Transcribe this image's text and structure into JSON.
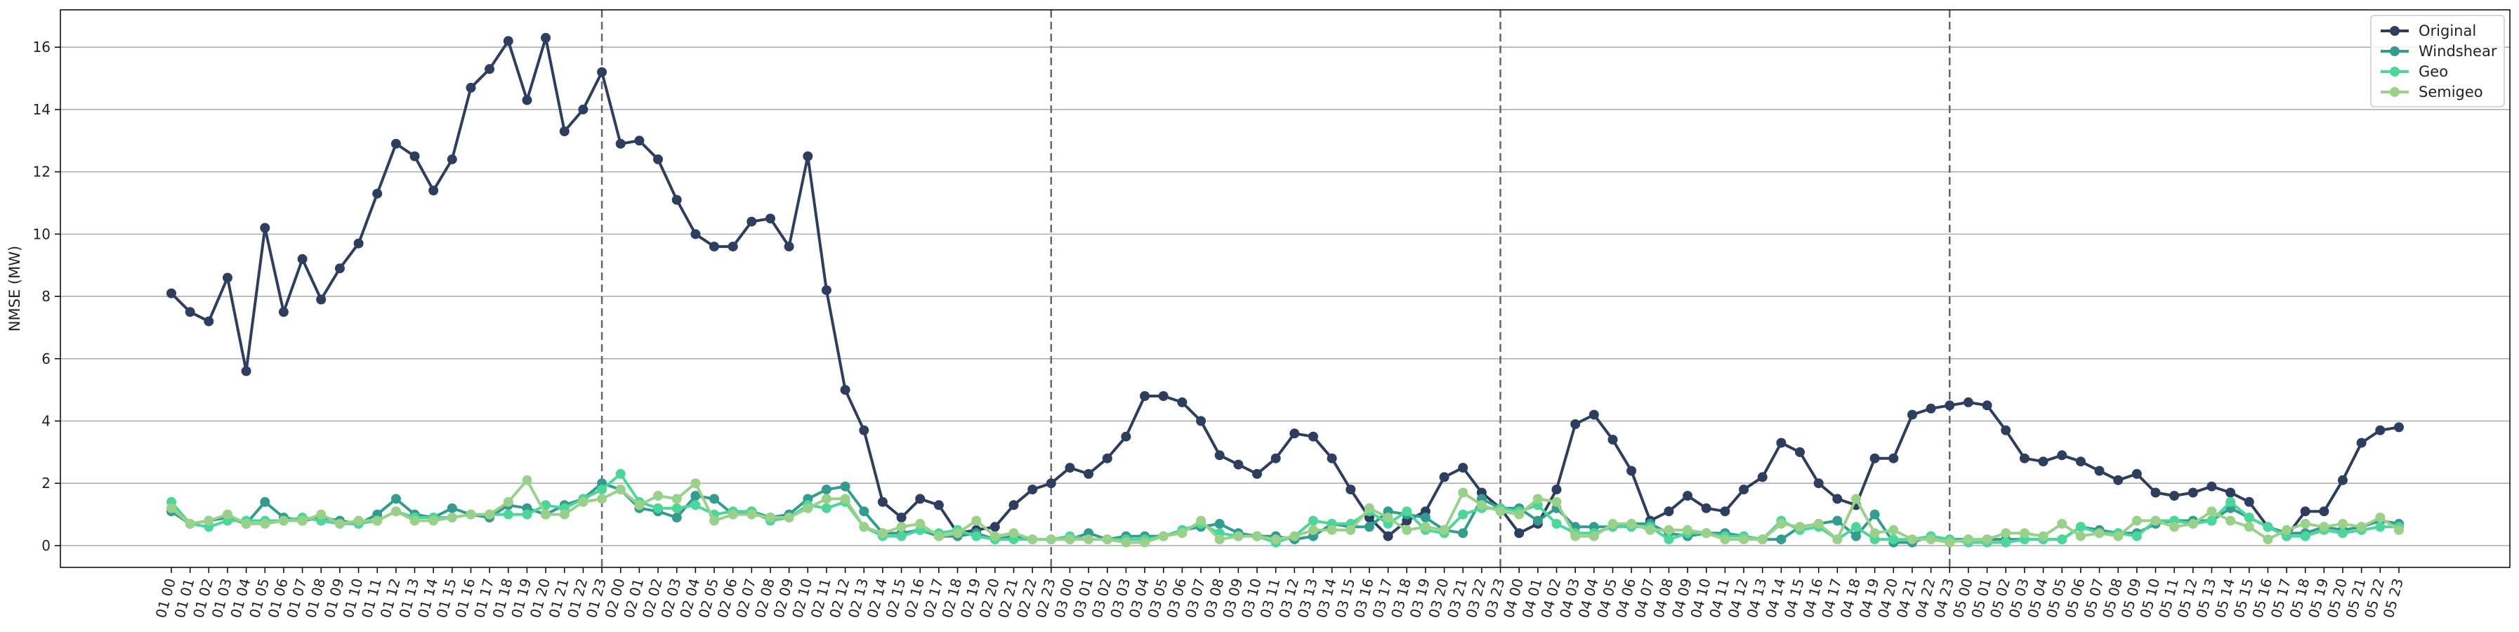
{
  "chart_data": {
    "type": "line",
    "title": "",
    "xlabel": "",
    "ylabel": "NMSE (MW)",
    "ylim": [
      -0.7,
      17.2
    ],
    "yticks": [
      0,
      2,
      4,
      6,
      8,
      10,
      12,
      14,
      16
    ],
    "grid": "horizontal",
    "legend_position": "top-right",
    "vlines": [
      "01 23",
      "02 23",
      "03 23",
      "04 23"
    ],
    "x": [
      "01 00",
      "01 01",
      "01 02",
      "01 03",
      "01 04",
      "01 05",
      "01 06",
      "01 07",
      "01 08",
      "01 09",
      "01 10",
      "01 11",
      "01 12",
      "01 13",
      "01 14",
      "01 15",
      "01 16",
      "01 17",
      "01 18",
      "01 19",
      "01 20",
      "01 21",
      "01 22",
      "01 23",
      "02 00",
      "02 01",
      "02 02",
      "02 03",
      "02 04",
      "02 05",
      "02 06",
      "02 07",
      "02 08",
      "02 09",
      "02 10",
      "02 11",
      "02 12",
      "02 13",
      "02 14",
      "02 15",
      "02 16",
      "02 17",
      "02 18",
      "02 19",
      "02 20",
      "02 21",
      "02 22",
      "02 23",
      "03 00",
      "03 01",
      "03 02",
      "03 03",
      "03 04",
      "03 05",
      "03 06",
      "03 07",
      "03 08",
      "03 09",
      "03 10",
      "03 11",
      "03 12",
      "03 13",
      "03 14",
      "03 15",
      "03 16",
      "03 17",
      "03 18",
      "03 19",
      "03 20",
      "03 21",
      "03 22",
      "03 23",
      "04 00",
      "04 01",
      "04 02",
      "04 03",
      "04 04",
      "04 05",
      "04 06",
      "04 07",
      "04 08",
      "04 09",
      "04 10",
      "04 11",
      "04 12",
      "04 13",
      "04 14",
      "04 15",
      "04 16",
      "04 17",
      "04 18",
      "04 19",
      "04 20",
      "04 21",
      "04 22",
      "04 23",
      "05 00",
      "05 01",
      "05 02",
      "05 03",
      "05 04",
      "05 05",
      "05 06",
      "05 07",
      "05 08",
      "05 09",
      "05 10",
      "05 11",
      "05 12",
      "05 13",
      "05 14",
      "05 15",
      "05 16",
      "05 17",
      "05 18",
      "05 19",
      "05 20",
      "05 21",
      "05 22",
      "05 23"
    ],
    "series": [
      {
        "name": "Original",
        "color": "#2d3e5e",
        "values": [
          8.1,
          7.5,
          7.2,
          8.6,
          5.6,
          10.2,
          7.5,
          9.2,
          7.9,
          8.9,
          9.7,
          11.3,
          12.9,
          12.5,
          11.4,
          12.4,
          14.7,
          15.3,
          16.2,
          14.3,
          16.3,
          13.3,
          14.0,
          15.2,
          12.9,
          13.0,
          12.4,
          11.1,
          10.0,
          9.6,
          9.6,
          10.4,
          10.5,
          9.6,
          12.5,
          8.2,
          5.0,
          3.7,
          1.4,
          0.9,
          1.5,
          1.3,
          0.4,
          0.5,
          0.6,
          1.3,
          1.8,
          2.0,
          2.5,
          2.3,
          2.8,
          3.5,
          4.8,
          4.8,
          4.6,
          4.0,
          2.9,
          2.6,
          2.3,
          2.8,
          3.6,
          3.5,
          2.8,
          1.8,
          0.9,
          0.3,
          0.8,
          1.1,
          2.2,
          2.5,
          1.7,
          1.2,
          0.4,
          0.7,
          1.8,
          3.9,
          4.2,
          3.4,
          2.4,
          0.8,
          1.1,
          1.6,
          1.2,
          1.1,
          1.8,
          2.2,
          3.3,
          3.0,
          2.0,
          1.5,
          1.3,
          2.8,
          2.8,
          4.2,
          4.4,
          4.5,
          4.6,
          4.5,
          3.7,
          2.8,
          2.7,
          2.9,
          2.7,
          2.4,
          2.1,
          2.3,
          1.7,
          1.6,
          1.7,
          1.9,
          1.7,
          1.4,
          0.6,
          0.3,
          1.1,
          1.1,
          2.1,
          3.3,
          3.7,
          3.8
        ]
      },
      {
        "name": "Windshear",
        "color": "#339c8e",
        "values": [
          1.1,
          0.7,
          0.8,
          0.9,
          0.7,
          1.4,
          0.9,
          0.8,
          0.9,
          0.8,
          0.7,
          1.0,
          1.5,
          1.0,
          0.9,
          1.2,
          1.0,
          0.9,
          1.3,
          1.2,
          1.0,
          1.3,
          1.5,
          2.0,
          1.8,
          1.2,
          1.1,
          0.9,
          1.6,
          1.5,
          1.0,
          1.1,
          0.9,
          1.0,
          1.5,
          1.8,
          1.9,
          1.1,
          0.4,
          0.4,
          0.5,
          0.3,
          0.3,
          0.4,
          0.2,
          0.3,
          0.2,
          0.2,
          0.2,
          0.4,
          0.2,
          0.3,
          0.3,
          0.3,
          0.5,
          0.6,
          0.7,
          0.4,
          0.3,
          0.3,
          0.2,
          0.3,
          0.7,
          0.6,
          0.6,
          1.1,
          1.0,
          0.9,
          0.5,
          0.4,
          1.5,
          1.2,
          1.2,
          0.8,
          1.2,
          0.6,
          0.6,
          0.6,
          0.7,
          0.7,
          0.4,
          0.3,
          0.4,
          0.4,
          0.3,
          0.2,
          0.2,
          0.6,
          0.7,
          0.8,
          0.3,
          1.0,
          0.1,
          0.1,
          0.3,
          0.2,
          0.2,
          0.2,
          0.2,
          0.2,
          0.2,
          0.2,
          0.6,
          0.5,
          0.4,
          0.4,
          0.7,
          0.8,
          0.8,
          0.8,
          1.2,
          0.9,
          0.6,
          0.4,
          0.4,
          0.6,
          0.5,
          0.6,
          0.8,
          0.7
        ]
      },
      {
        "name": "Geo",
        "color": "#4cd69a",
        "values": [
          1.4,
          0.7,
          0.6,
          0.8,
          0.8,
          0.8,
          0.8,
          0.9,
          0.8,
          0.7,
          0.7,
          0.8,
          1.1,
          0.9,
          0.9,
          0.9,
          1.0,
          1.0,
          1.0,
          1.0,
          1.3,
          1.2,
          1.5,
          1.8,
          2.3,
          1.4,
          1.2,
          1.2,
          1.3,
          1.0,
          1.1,
          1.1,
          0.8,
          0.9,
          1.3,
          1.2,
          1.4,
          0.6,
          0.3,
          0.3,
          0.5,
          0.4,
          0.5,
          0.3,
          0.2,
          0.2,
          0.2,
          0.2,
          0.3,
          0.2,
          0.2,
          0.2,
          0.2,
          0.3,
          0.5,
          0.7,
          0.4,
          0.3,
          0.3,
          0.1,
          0.3,
          0.8,
          0.7,
          0.7,
          1.1,
          0.7,
          1.1,
          0.5,
          0.4,
          1.0,
          1.2,
          1.2,
          1.1,
          1.3,
          0.7,
          0.4,
          0.4,
          0.6,
          0.6,
          0.6,
          0.2,
          0.4,
          0.4,
          0.3,
          0.3,
          0.2,
          0.8,
          0.5,
          0.6,
          0.2,
          0.6,
          0.2,
          0.2,
          0.2,
          0.3,
          0.2,
          0.1,
          0.1,
          0.1,
          0.2,
          0.2,
          0.2,
          0.6,
          0.4,
          0.4,
          0.3,
          0.8,
          0.8,
          0.7,
          0.8,
          1.4,
          0.9,
          0.6,
          0.3,
          0.3,
          0.5,
          0.4,
          0.5,
          0.6,
          0.6
        ]
      },
      {
        "name": "Semigeo",
        "color": "#99d18a",
        "values": [
          1.2,
          0.7,
          0.8,
          1.0,
          0.7,
          0.7,
          0.8,
          0.8,
          1.0,
          0.7,
          0.8,
          0.8,
          1.1,
          0.8,
          0.8,
          0.9,
          1.0,
          1.0,
          1.4,
          2.1,
          1.0,
          1.0,
          1.4,
          1.5,
          1.8,
          1.3,
          1.6,
          1.5,
          2.0,
          0.8,
          1.0,
          1.0,
          0.9,
          0.9,
          1.2,
          1.5,
          1.5,
          0.6,
          0.4,
          0.6,
          0.7,
          0.3,
          0.4,
          0.8,
          0.3,
          0.4,
          0.2,
          0.2,
          0.2,
          0.2,
          0.2,
          0.1,
          0.1,
          0.3,
          0.4,
          0.8,
          0.2,
          0.3,
          0.3,
          0.2,
          0.3,
          0.5,
          0.5,
          0.5,
          1.2,
          0.9,
          0.5,
          0.6,
          0.5,
          1.7,
          1.3,
          1.1,
          1.0,
          1.5,
          1.4,
          0.3,
          0.3,
          0.7,
          0.7,
          0.5,
          0.5,
          0.5,
          0.4,
          0.2,
          0.2,
          0.2,
          0.7,
          0.6,
          0.7,
          0.2,
          1.5,
          0.4,
          0.5,
          0.2,
          0.2,
          0.1,
          0.2,
          0.2,
          0.4,
          0.4,
          0.3,
          0.7,
          0.3,
          0.4,
          0.3,
          0.8,
          0.8,
          0.6,
          0.7,
          1.1,
          0.8,
          0.6,
          0.2,
          0.5,
          0.7,
          0.6,
          0.7,
          0.6,
          0.9,
          0.5
        ]
      }
    ]
  }
}
